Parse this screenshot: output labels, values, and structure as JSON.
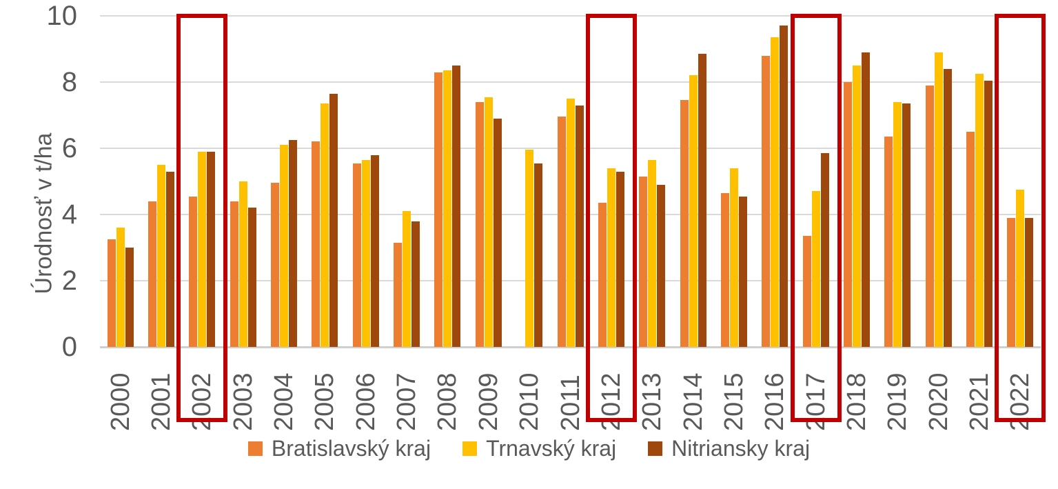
{
  "chart_data": {
    "type": "bar",
    "title": "",
    "xlabel": "",
    "ylabel": "Úrodnosť v t/ha",
    "ylim": [
      0,
      10
    ],
    "yticks": [
      0,
      2,
      4,
      6,
      8,
      10
    ],
    "grid": true,
    "legend_position": "bottom",
    "categories": [
      "2000",
      "2001",
      "2002",
      "2003",
      "2004",
      "2005",
      "2006",
      "2007",
      "2008",
      "2009",
      "2010",
      "2011",
      "2012",
      "2013",
      "2014",
      "2015",
      "2016",
      "2017",
      "2018",
      "2019",
      "2020",
      "2021",
      "2022"
    ],
    "series": [
      {
        "name": "Bratislavský kraj",
        "color": "#ED7D31",
        "values": [
          3.25,
          4.4,
          4.55,
          4.4,
          4.95,
          6.2,
          5.55,
          3.15,
          8.3,
          7.4,
          null,
          6.95,
          4.35,
          5.15,
          7.45,
          4.65,
          8.8,
          3.35,
          8.0,
          6.35,
          7.9,
          6.5,
          3.9
        ]
      },
      {
        "name": "Trnavský kraj",
        "color": "#FFC000",
        "values": [
          3.6,
          5.5,
          5.9,
          5.0,
          6.1,
          7.35,
          5.65,
          4.1,
          8.35,
          7.55,
          5.95,
          7.5,
          5.4,
          5.65,
          8.2,
          5.4,
          9.35,
          4.7,
          8.5,
          7.4,
          8.9,
          8.25,
          4.75
        ]
      },
      {
        "name": "Nitriansky kraj",
        "color": "#9E480E",
        "values": [
          3.0,
          5.3,
          5.9,
          4.2,
          6.25,
          7.65,
          5.8,
          3.8,
          8.5,
          6.9,
          5.55,
          7.3,
          5.3,
          4.9,
          8.85,
          4.55,
          9.7,
          5.85,
          8.9,
          7.35,
          8.4,
          8.05,
          3.9
        ]
      }
    ],
    "highlighted_years": [
      "2002",
      "2012",
      "2017",
      "2022"
    ],
    "highlight_color": "#C00000",
    "axis_text_color": "#595959",
    "gridline_color": "#D9D9D9"
  }
}
